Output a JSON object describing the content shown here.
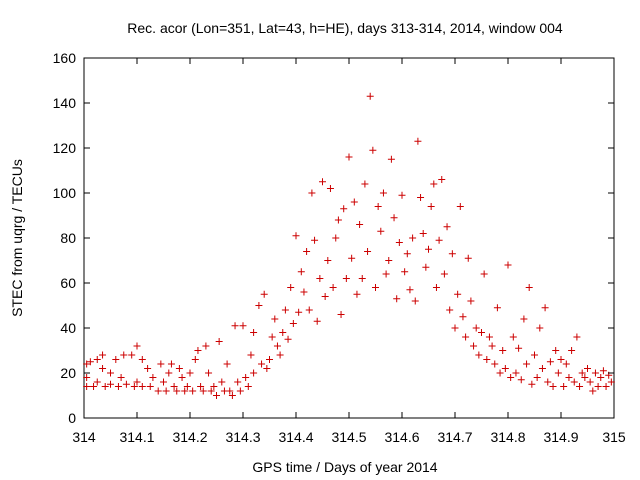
{
  "chart_data": {
    "type": "scatter",
    "title": "Rec. acor (Lon=351, Lat=43, h=HE), days 313-314, 2014, window 004",
    "xlabel": "GPS time / Days of year 2014",
    "ylabel": "STEC from uqrg / TECUs",
    "xlim": [
      314,
      315
    ],
    "ylim": [
      0,
      160
    ],
    "xticks": [
      314,
      314.1,
      314.2,
      314.3,
      314.4,
      314.5,
      314.6,
      314.7,
      314.8,
      314.9,
      315
    ],
    "xtick_labels": [
      "314",
      "314.1",
      "314.2",
      "314.3",
      "314.4",
      "314.5",
      "314.6",
      "314.7",
      "314.8",
      "314.9",
      "315"
    ],
    "yticks": [
      0,
      20,
      40,
      60,
      80,
      100,
      120,
      140,
      160
    ],
    "ytick_labels": [
      "0",
      "20",
      "40",
      "60",
      "80",
      "100",
      "120",
      "140",
      "160"
    ],
    "grid": false,
    "legend": "none",
    "marker": "plus",
    "color": "#cc0000",
    "points": [
      [
        314.005,
        14
      ],
      [
        314.005,
        18
      ],
      [
        314.005,
        24
      ],
      [
        314.012,
        25
      ],
      [
        314.018,
        14
      ],
      [
        314.025,
        16
      ],
      [
        314.025,
        26
      ],
      [
        314.035,
        22
      ],
      [
        314.035,
        28
      ],
      [
        314.04,
        14
      ],
      [
        314.05,
        15
      ],
      [
        314.05,
        20
      ],
      [
        314.06,
        26
      ],
      [
        314.065,
        14
      ],
      [
        314.07,
        18
      ],
      [
        314.075,
        28
      ],
      [
        314.08,
        15
      ],
      [
        314.09,
        28
      ],
      [
        314.095,
        14
      ],
      [
        314.1,
        32
      ],
      [
        314.1,
        16
      ],
      [
        314.11,
        26
      ],
      [
        314.11,
        14
      ],
      [
        314.12,
        22
      ],
      [
        314.125,
        14
      ],
      [
        314.13,
        18
      ],
      [
        314.14,
        12
      ],
      [
        314.145,
        24
      ],
      [
        314.15,
        16
      ],
      [
        314.155,
        12
      ],
      [
        314.16,
        20
      ],
      [
        314.165,
        24
      ],
      [
        314.17,
        14
      ],
      [
        314.175,
        12
      ],
      [
        314.18,
        22
      ],
      [
        314.185,
        18
      ],
      [
        314.19,
        12
      ],
      [
        314.195,
        14
      ],
      [
        314.2,
        20
      ],
      [
        314.205,
        12
      ],
      [
        314.21,
        26
      ],
      [
        314.215,
        30
      ],
      [
        314.22,
        14
      ],
      [
        314.225,
        12
      ],
      [
        314.23,
        32
      ],
      [
        314.235,
        20
      ],
      [
        314.24,
        12
      ],
      [
        314.245,
        14
      ],
      [
        314.25,
        10
      ],
      [
        314.255,
        34
      ],
      [
        314.26,
        16
      ],
      [
        314.265,
        12
      ],
      [
        314.27,
        24
      ],
      [
        314.275,
        12
      ],
      [
        314.28,
        10
      ],
      [
        314.285,
        41
      ],
      [
        314.29,
        16
      ],
      [
        314.295,
        12
      ],
      [
        314.3,
        41
      ],
      [
        314.305,
        18
      ],
      [
        314.31,
        14
      ],
      [
        314.315,
        28
      ],
      [
        314.32,
        38
      ],
      [
        314.32,
        20
      ],
      [
        314.33,
        50
      ],
      [
        314.335,
        24
      ],
      [
        314.34,
        55
      ],
      [
        314.345,
        22
      ],
      [
        314.35,
        26
      ],
      [
        314.355,
        36
      ],
      [
        314.36,
        44
      ],
      [
        314.365,
        32
      ],
      [
        314.37,
        28
      ],
      [
        314.375,
        38
      ],
      [
        314.38,
        48
      ],
      [
        314.385,
        35
      ],
      [
        314.39,
        58
      ],
      [
        314.395,
        42
      ],
      [
        314.4,
        81
      ],
      [
        314.405,
        47
      ],
      [
        314.41,
        65
      ],
      [
        314.415,
        56
      ],
      [
        314.42,
        74
      ],
      [
        314.425,
        48
      ],
      [
        314.43,
        100
      ],
      [
        314.435,
        79
      ],
      [
        314.44,
        43
      ],
      [
        314.445,
        62
      ],
      [
        314.45,
        105
      ],
      [
        314.455,
        54
      ],
      [
        314.46,
        70
      ],
      [
        314.465,
        102
      ],
      [
        314.47,
        58
      ],
      [
        314.475,
        80
      ],
      [
        314.48,
        88
      ],
      [
        314.485,
        46
      ],
      [
        314.49,
        93
      ],
      [
        314.495,
        62
      ],
      [
        314.5,
        116
      ],
      [
        314.505,
        71
      ],
      [
        314.51,
        96
      ],
      [
        314.515,
        55
      ],
      [
        314.52,
        86
      ],
      [
        314.525,
        62
      ],
      [
        314.53,
        104
      ],
      [
        314.535,
        74
      ],
      [
        314.54,
        143
      ],
      [
        314.545,
        119
      ],
      [
        314.55,
        58
      ],
      [
        314.555,
        94
      ],
      [
        314.56,
        83
      ],
      [
        314.565,
        100
      ],
      [
        314.57,
        64
      ],
      [
        314.575,
        70
      ],
      [
        314.58,
        115
      ],
      [
        314.585,
        89
      ],
      [
        314.59,
        53
      ],
      [
        314.595,
        78
      ],
      [
        314.6,
        99
      ],
      [
        314.605,
        65
      ],
      [
        314.61,
        73
      ],
      [
        314.615,
        57
      ],
      [
        314.62,
        80
      ],
      [
        314.625,
        52
      ],
      [
        314.63,
        123
      ],
      [
        314.635,
        98
      ],
      [
        314.64,
        82
      ],
      [
        314.645,
        67
      ],
      [
        314.65,
        75
      ],
      [
        314.655,
        94
      ],
      [
        314.66,
        104
      ],
      [
        314.665,
        58
      ],
      [
        314.67,
        79
      ],
      [
        314.675,
        106
      ],
      [
        314.68,
        64
      ],
      [
        314.685,
        85
      ],
      [
        314.69,
        48
      ],
      [
        314.695,
        73
      ],
      [
        314.7,
        40
      ],
      [
        314.705,
        55
      ],
      [
        314.71,
        94
      ],
      [
        314.715,
        45
      ],
      [
        314.72,
        36
      ],
      [
        314.725,
        71
      ],
      [
        314.73,
        52
      ],
      [
        314.735,
        32
      ],
      [
        314.74,
        40
      ],
      [
        314.745,
        28
      ],
      [
        314.75,
        38
      ],
      [
        314.755,
        64
      ],
      [
        314.76,
        26
      ],
      [
        314.765,
        36
      ],
      [
        314.77,
        32
      ],
      [
        314.775,
        24
      ],
      [
        314.78,
        49
      ],
      [
        314.785,
        20
      ],
      [
        314.79,
        30
      ],
      [
        314.795,
        22
      ],
      [
        314.8,
        68
      ],
      [
        314.805,
        18
      ],
      [
        314.81,
        36
      ],
      [
        314.815,
        20
      ],
      [
        314.82,
        31
      ],
      [
        314.825,
        17
      ],
      [
        314.83,
        44
      ],
      [
        314.835,
        24
      ],
      [
        314.84,
        58
      ],
      [
        314.845,
        15
      ],
      [
        314.85,
        28
      ],
      [
        314.855,
        18
      ],
      [
        314.86,
        40
      ],
      [
        314.865,
        22
      ],
      [
        314.87,
        49
      ],
      [
        314.875,
        16
      ],
      [
        314.88,
        25
      ],
      [
        314.885,
        14
      ],
      [
        314.89,
        30
      ],
      [
        314.895,
        20
      ],
      [
        314.9,
        26
      ],
      [
        314.905,
        14
      ],
      [
        314.91,
        24
      ],
      [
        314.915,
        18
      ],
      [
        314.92,
        30
      ],
      [
        314.925,
        16
      ],
      [
        314.93,
        36
      ],
      [
        314.935,
        14
      ],
      [
        314.94,
        20
      ],
      [
        314.945,
        18
      ],
      [
        314.95,
        22
      ],
      [
        314.955,
        16
      ],
      [
        314.96,
        12
      ],
      [
        314.965,
        20
      ],
      [
        314.97,
        14
      ],
      [
        314.975,
        18
      ],
      [
        314.98,
        21
      ],
      [
        314.985,
        14
      ],
      [
        314.99,
        19
      ],
      [
        314.995,
        16
      ]
    ]
  }
}
